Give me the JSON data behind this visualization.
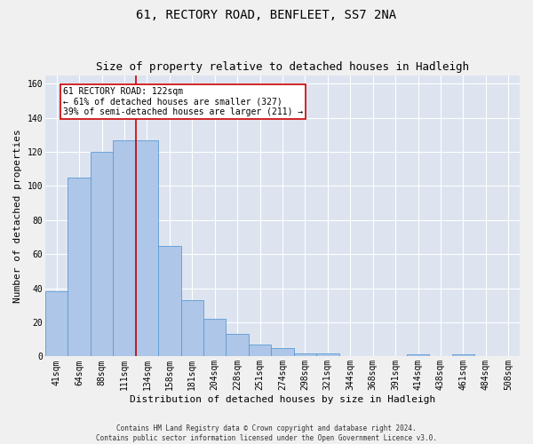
{
  "title": "61, RECTORY ROAD, BENFLEET, SS7 2NA",
  "subtitle": "Size of property relative to detached houses in Hadleigh",
  "xlabel": "Distribution of detached houses by size in Hadleigh",
  "ylabel": "Number of detached properties",
  "footer_line1": "Contains HM Land Registry data © Crown copyright and database right 2024.",
  "footer_line2": "Contains public sector information licensed under the Open Government Licence v3.0.",
  "bar_labels": [
    "41sqm",
    "64sqm",
    "88sqm",
    "111sqm",
    "134sqm",
    "158sqm",
    "181sqm",
    "204sqm",
    "228sqm",
    "251sqm",
    "274sqm",
    "298sqm",
    "321sqm",
    "344sqm",
    "368sqm",
    "391sqm",
    "414sqm",
    "438sqm",
    "461sqm",
    "484sqm",
    "508sqm"
  ],
  "bar_values": [
    38,
    105,
    120,
    127,
    127,
    65,
    33,
    22,
    13,
    7,
    5,
    2,
    2,
    0,
    0,
    0,
    1,
    0,
    1,
    0,
    0
  ],
  "bar_color": "#aec6e8",
  "bar_edge_color": "#5b9bd5",
  "fig_background_color": "#f0f0f0",
  "ax_background_color": "#dde4f0",
  "grid_color": "#ffffff",
  "vline_x": 3.5,
  "vline_color": "#cc0000",
  "annotation_text": "61 RECTORY ROAD: 122sqm\n← 61% of detached houses are smaller (327)\n39% of semi-detached houses are larger (211) →",
  "annotation_box_color": "#cc0000",
  "ylim": [
    0,
    165
  ],
  "yticks": [
    0,
    20,
    40,
    60,
    80,
    100,
    120,
    140,
    160
  ],
  "title_fontsize": 10,
  "subtitle_fontsize": 9,
  "ylabel_fontsize": 8,
  "xlabel_fontsize": 8,
  "tick_fontsize": 7,
  "annotation_fontsize": 7,
  "footer_fontsize": 5.5
}
